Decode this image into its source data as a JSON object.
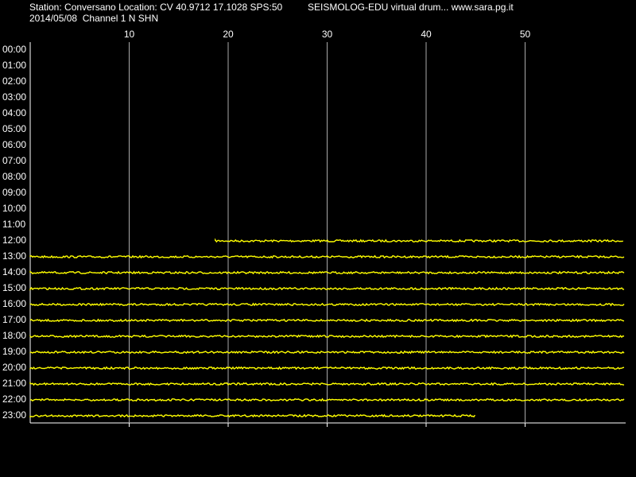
{
  "chart_data": {
    "type": "drum",
    "title": "Station: Conversano Location: CV 40.9712 17.1028 SPS:50",
    "subtitle": "2014/05/08  Channel 1 N SHN",
    "annotation": "SEISMOLOG-EDU virtual drum... www.sara.pg.it",
    "categories": [
      "00:00",
      "01:00",
      "02:00",
      "03:00",
      "04:00",
      "05:00",
      "06:00",
      "07:00",
      "08:00",
      "09:00",
      "10:00",
      "11:00",
      "12:00",
      "13:00",
      "14:00",
      "15:00",
      "16:00",
      "17:00",
      "18:00",
      "19:00",
      "20:00",
      "21:00",
      "22:00",
      "23:00"
    ],
    "x_start": [
      null,
      null,
      null,
      null,
      null,
      null,
      null,
      null,
      null,
      null,
      null,
      null,
      18.7,
      0,
      0,
      0,
      0,
      0,
      0,
      0,
      0,
      0,
      0,
      0
    ],
    "x_end": [
      null,
      null,
      null,
      null,
      null,
      null,
      null,
      null,
      null,
      null,
      null,
      null,
      60,
      60,
      60,
      60,
      60,
      60,
      60,
      60,
      60,
      60,
      60,
      45
    ],
    "xlim": [
      0,
      60
    ],
    "xticks": [
      10,
      20,
      30,
      40,
      50
    ],
    "color": "#ffff00",
    "grid": true
  }
}
